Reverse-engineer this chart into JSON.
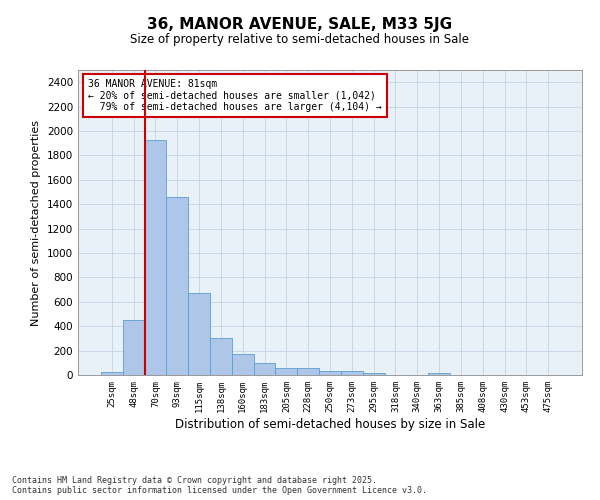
{
  "title": "36, MANOR AVENUE, SALE, M33 5JG",
  "subtitle": "Size of property relative to semi-detached houses in Sale",
  "xlabel": "Distribution of semi-detached houses by size in Sale",
  "ylabel": "Number of semi-detached properties",
  "footnote": "Contains HM Land Registry data © Crown copyright and database right 2025.\nContains public sector information licensed under the Open Government Licence v3.0.",
  "bar_color": "#aec6e8",
  "bar_edge_color": "#5a9fd4",
  "grid_color": "#c8d8e8",
  "bg_color": "#e8f0f8",
  "annotation_box_color": "#cc0000",
  "property_label": "36 MANOR AVENUE: 81sqm",
  "pct_smaller": "20%",
  "count_smaller": "1,042",
  "pct_larger": "79%",
  "count_larger": "4,104",
  "categories": [
    "25sqm",
    "48sqm",
    "70sqm",
    "93sqm",
    "115sqm",
    "138sqm",
    "160sqm",
    "183sqm",
    "205sqm",
    "228sqm",
    "250sqm",
    "273sqm",
    "295sqm",
    "318sqm",
    "340sqm",
    "363sqm",
    "385sqm",
    "408sqm",
    "430sqm",
    "453sqm",
    "475sqm"
  ],
  "values": [
    25,
    450,
    1930,
    1460,
    670,
    305,
    175,
    95,
    60,
    60,
    35,
    35,
    20,
    0,
    0,
    20,
    0,
    0,
    0,
    0,
    0
  ],
  "ylim": [
    0,
    2500
  ],
  "yticks": [
    0,
    200,
    400,
    600,
    800,
    1000,
    1200,
    1400,
    1600,
    1800,
    2000,
    2200,
    2400
  ],
  "vline_x": 2,
  "vline_color": "#cc0000"
}
